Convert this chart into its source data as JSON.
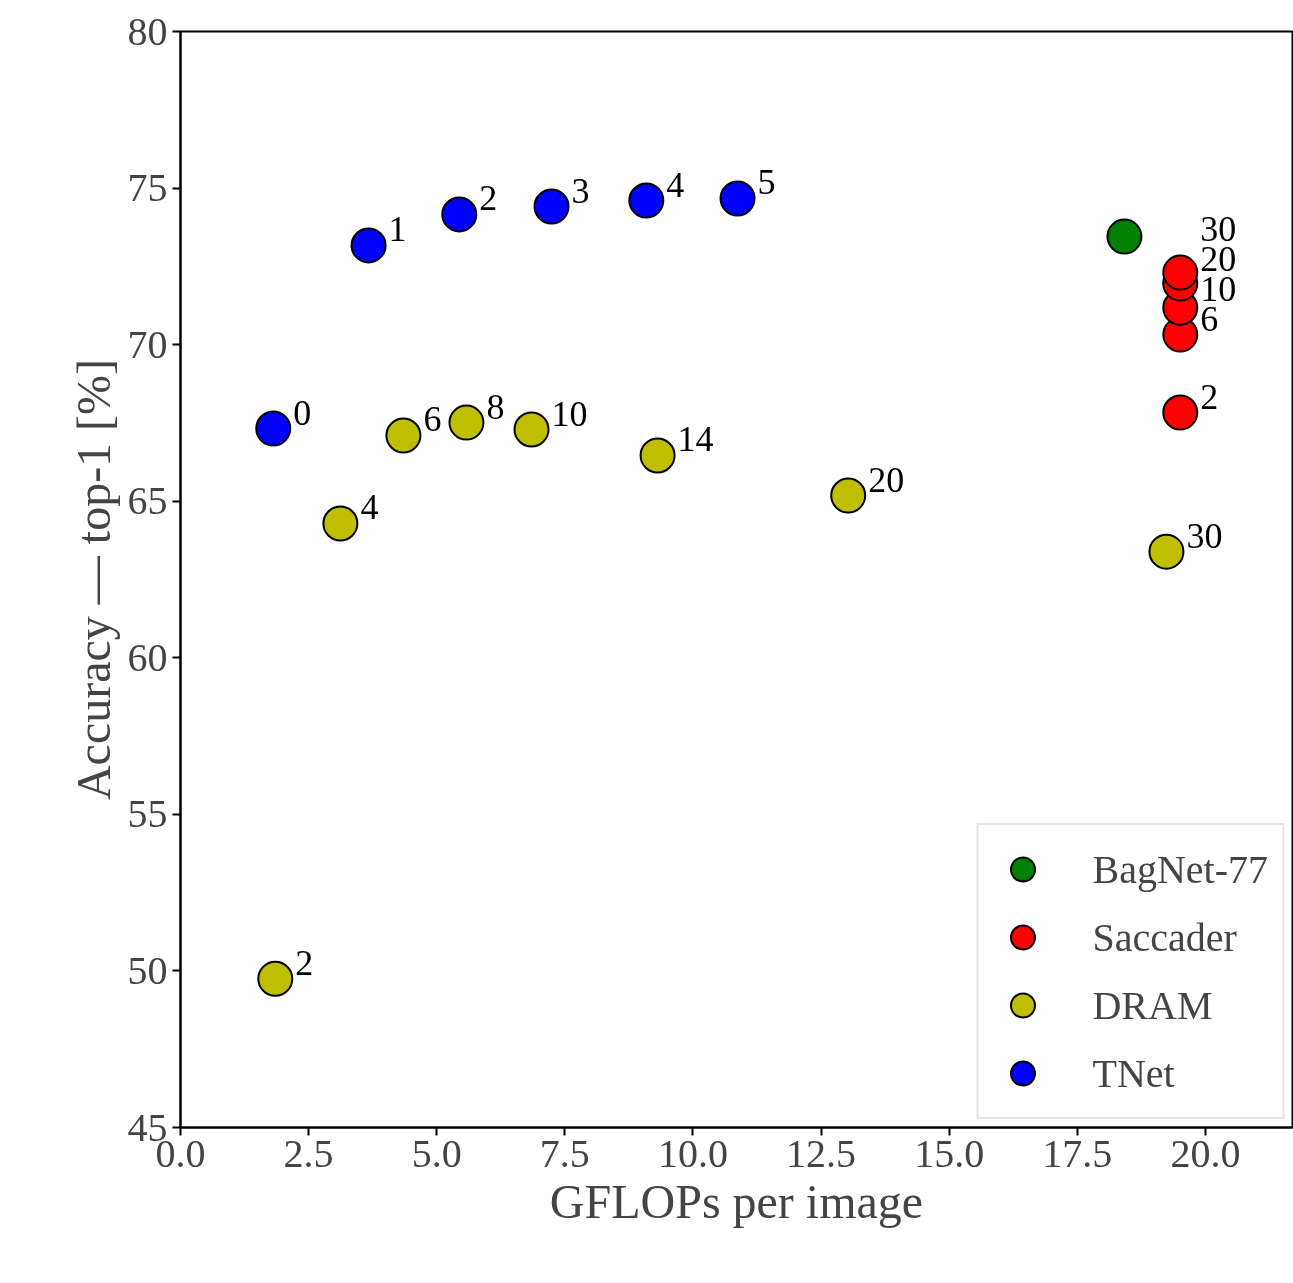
{
  "chart_data": {
    "type": "scatter",
    "xlabel": "GFLOPs per image",
    "ylabel": "Accuracy — top-1 [%]",
    "xlim": [
      0,
      21.7
    ],
    "ylim": [
      45,
      80
    ],
    "xticks": [
      {
        "value": 0,
        "label": "0.0"
      },
      {
        "value": 2.5,
        "label": "2.5"
      },
      {
        "value": 5,
        "label": "5.0"
      },
      {
        "value": 7.5,
        "label": "7.5"
      },
      {
        "value": 10,
        "label": "10.0"
      },
      {
        "value": 12.5,
        "label": "12.5"
      },
      {
        "value": 15,
        "label": "15.0"
      },
      {
        "value": 17.5,
        "label": "17.5"
      },
      {
        "value": 20,
        "label": "20.0"
      }
    ],
    "yticks": [
      45,
      50,
      55,
      60,
      65,
      70,
      75,
      80
    ],
    "grid": false,
    "legend": "bottom right",
    "marker": "circle",
    "series": [
      {
        "name": "BagNet-77",
        "color": "#008000",
        "x": [
          18.42
        ],
        "values": [
          73.45
        ]
      },
      {
        "name": "Saccader",
        "color": "#ff0000",
        "x": [
          19.51,
          19.51,
          19.51,
          19.51,
          19.51
        ],
        "values": [
          67.83,
          70.32,
          71.18,
          71.95,
          72.3
        ]
      },
      {
        "name": "DRAM",
        "color": "#bfbf00",
        "x": [
          1.85,
          3.12,
          4.35,
          5.58,
          6.85,
          9.31,
          13.03,
          19.24
        ],
        "values": [
          49.75,
          64.29,
          67.1,
          67.51,
          67.29,
          66.46,
          65.18,
          63.39
        ]
      },
      {
        "name": "TNet",
        "color": "#0000ff",
        "x": [
          1.81,
          3.67,
          5.44,
          7.24,
          9.09,
          10.87
        ],
        "values": [
          67.32,
          73.17,
          74.16,
          74.41,
          74.6,
          74.67
        ]
      }
    ],
    "annotations": [
      {
        "text": "2",
        "x": 19.51,
        "y": 67.83
      },
      {
        "text": "6",
        "x": 19.51,
        "y": 70.32
      },
      {
        "text": "10",
        "x": 19.51,
        "y": 71.18
      },
      {
        "text": "20",
        "x": 19.51,
        "y": 71.95
      },
      {
        "text": "30",
        "x": 19.51,
        "y": 72.3
      },
      {
        "text": "2",
        "x": 1.85,
        "y": 49.75
      },
      {
        "text": "4",
        "x": 3.12,
        "y": 64.29
      },
      {
        "text": "6",
        "x": 4.35,
        "y": 67.1
      },
      {
        "text": "8",
        "x": 5.58,
        "y": 67.51
      },
      {
        "text": "10",
        "x": 6.85,
        "y": 67.29
      },
      {
        "text": "14",
        "x": 9.31,
        "y": 66.46
      },
      {
        "text": "20",
        "x": 13.03,
        "y": 65.18
      },
      {
        "text": "30",
        "x": 19.24,
        "y": 63.39
      },
      {
        "text": "0",
        "x": 1.81,
        "y": 67.32
      },
      {
        "text": "1",
        "x": 3.67,
        "y": 73.17
      },
      {
        "text": "2",
        "x": 5.44,
        "y": 74.16
      },
      {
        "text": "3",
        "x": 7.24,
        "y": 74.41
      },
      {
        "text": "4",
        "x": 9.09,
        "y": 74.6
      },
      {
        "text": "5",
        "x": 10.87,
        "y": 74.67
      }
    ]
  }
}
